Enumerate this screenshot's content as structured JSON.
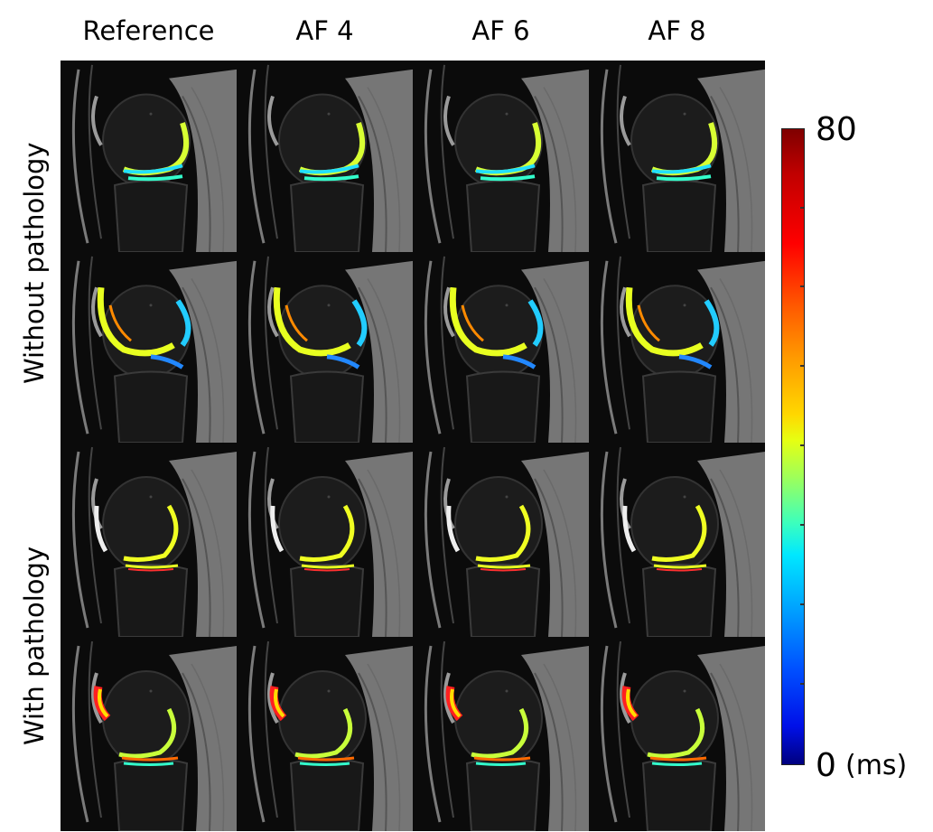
{
  "columns": [
    "Reference",
    "AF 4",
    "AF 6",
    "AF 8"
  ],
  "row_groups": [
    "Without pathology",
    "With pathology"
  ],
  "colorbar": {
    "max_label": "80",
    "min_label": "0",
    "unit_label": "(ms)",
    "colormap": "jet"
  },
  "panels": [
    {
      "row": 0,
      "group": 0,
      "variant": "a"
    },
    {
      "row": 1,
      "group": 0,
      "variant": "b"
    },
    {
      "row": 2,
      "group": 1,
      "variant": "c"
    },
    {
      "row": 3,
      "group": 1,
      "variant": "d"
    }
  ]
}
